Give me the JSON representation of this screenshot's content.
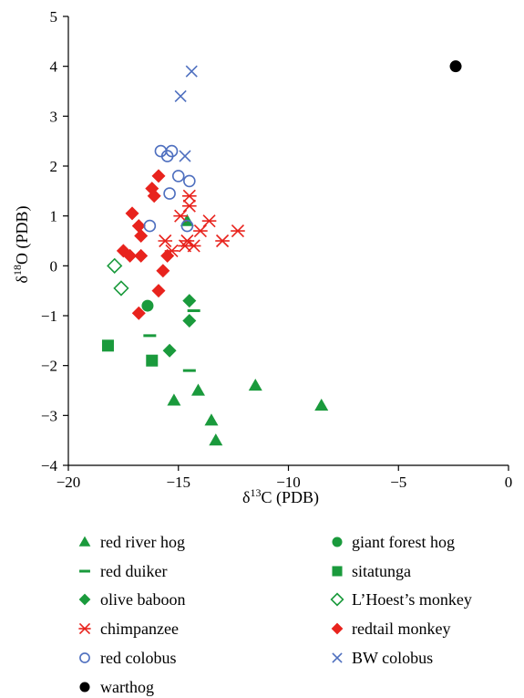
{
  "chart_data": {
    "type": "scatter",
    "xlabel": {
      "prefix": "δ",
      "sup": "13",
      "suffix": "C (PDB)"
    },
    "ylabel": {
      "prefix": "δ",
      "sup": "18",
      "suffix": "O (PDB)"
    },
    "xlim": [
      -20,
      0
    ],
    "ylim": [
      -4,
      5
    ],
    "xticks": [
      -20,
      -15,
      -10,
      -5,
      0
    ],
    "yticks": [
      -4,
      -3,
      -2,
      -1,
      0,
      1,
      2,
      3,
      4,
      5
    ],
    "xtick_labels": [
      "−20",
      "−15",
      "−10",
      "−5",
      "0"
    ],
    "ytick_labels": [
      "−4",
      "−3",
      "−2",
      "−1",
      "0",
      "1",
      "2",
      "3",
      "4",
      "5"
    ],
    "grid": false,
    "legend_position": "bottom",
    "colors": {
      "green": "#1a9a3c",
      "red": "#e8231d",
      "blue": "#4e6fbf",
      "black": "#000000"
    },
    "series": [
      {
        "name": "red river hog",
        "marker": "triangle",
        "color": "#1a9a3c",
        "points": [
          [
            -14.6,
            0.9
          ],
          [
            -15.2,
            -2.7
          ],
          [
            -14.1,
            -2.5
          ],
          [
            -13.5,
            -3.1
          ],
          [
            -13.3,
            -3.5
          ],
          [
            -11.5,
            -2.4
          ],
          [
            -8.5,
            -2.8
          ]
        ]
      },
      {
        "name": "giant forest hog",
        "marker": "circle",
        "color": "#1a9a3c",
        "points": [
          [
            -16.4,
            -0.8
          ]
        ]
      },
      {
        "name": "red duiker",
        "marker": "dash",
        "color": "#1a9a3c",
        "points": [
          [
            -16.3,
            -1.4
          ],
          [
            -14.5,
            -2.1
          ],
          [
            -14.3,
            -0.9
          ]
        ]
      },
      {
        "name": "sitatunga",
        "marker": "square",
        "color": "#1a9a3c",
        "points": [
          [
            -18.2,
            -1.6
          ],
          [
            -16.2,
            -1.9
          ]
        ]
      },
      {
        "name": "olive baboon",
        "marker": "diamond",
        "color": "#1a9a3c",
        "points": [
          [
            -14.5,
            -0.7
          ],
          [
            -14.5,
            -1.1
          ],
          [
            -15.4,
            -1.7
          ]
        ]
      },
      {
        "name": "L'Hoest's monkey",
        "marker": "diamond-open",
        "color": "#1a9a3c",
        "points": [
          [
            -17.9,
            0.0
          ],
          [
            -17.6,
            -0.45
          ]
        ]
      },
      {
        "name": "chimpanzee",
        "marker": "asterisk",
        "color": "#e8231d",
        "points": [
          [
            -14.5,
            1.4
          ],
          [
            -14.5,
            1.2
          ],
          [
            -15.6,
            0.5
          ],
          [
            -15.3,
            0.3
          ],
          [
            -14.9,
            1.0
          ],
          [
            -14.6,
            0.5
          ],
          [
            -14.3,
            0.4
          ],
          [
            -14.7,
            0.4
          ],
          [
            -14.0,
            0.7
          ],
          [
            -13.6,
            0.9
          ],
          [
            -13.0,
            0.5
          ],
          [
            -12.3,
            0.7
          ]
        ]
      },
      {
        "name": "redtail monkey",
        "marker": "diamond",
        "color": "#e8231d",
        "points": [
          [
            -15.9,
            1.8
          ],
          [
            -16.2,
            1.55
          ],
          [
            -16.1,
            1.4
          ],
          [
            -17.1,
            1.05
          ],
          [
            -16.8,
            0.8
          ],
          [
            -16.7,
            0.6
          ],
          [
            -17.5,
            0.3
          ],
          [
            -17.2,
            0.2
          ],
          [
            -16.7,
            0.2
          ],
          [
            -15.5,
            0.2
          ],
          [
            -15.7,
            -0.1
          ],
          [
            -15.9,
            -0.5
          ],
          [
            -16.8,
            -0.95
          ]
        ]
      },
      {
        "name": "red colobus",
        "marker": "circle-open",
        "color": "#4e6fbf",
        "points": [
          [
            -15.8,
            2.3
          ],
          [
            -15.3,
            2.3
          ],
          [
            -15.5,
            2.2
          ],
          [
            -15.0,
            1.8
          ],
          [
            -14.5,
            1.7
          ],
          [
            -15.4,
            1.45
          ],
          [
            -16.3,
            0.8
          ],
          [
            -14.6,
            0.8
          ]
        ]
      },
      {
        "name": "BW colobus",
        "marker": "x",
        "color": "#4e6fbf",
        "points": [
          [
            -14.4,
            3.9
          ],
          [
            -14.9,
            3.4
          ],
          [
            -14.7,
            2.2
          ]
        ]
      },
      {
        "name": "warthog",
        "marker": "circle",
        "color": "#000000",
        "points": [
          [
            -2.4,
            4.0
          ]
        ]
      }
    ]
  }
}
